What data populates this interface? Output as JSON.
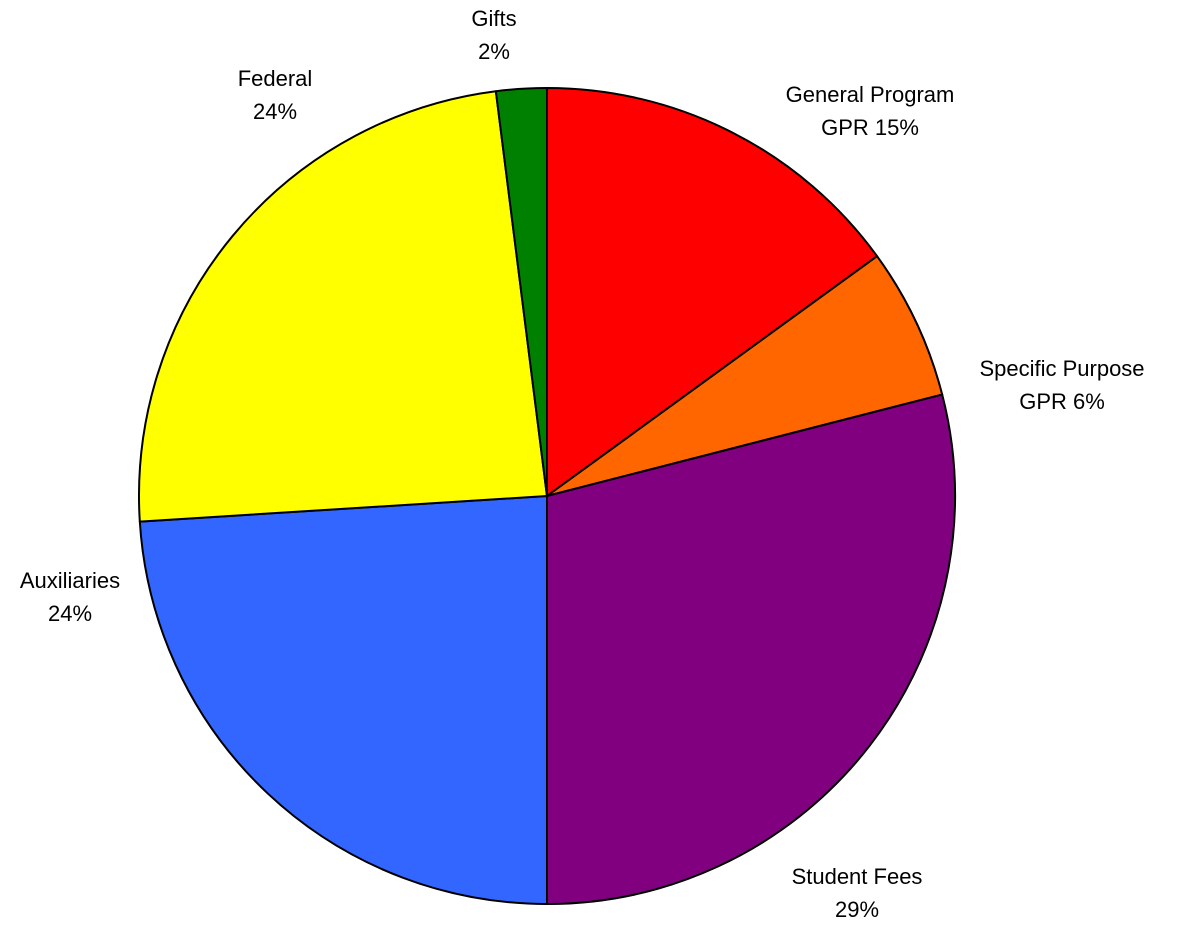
{
  "chart_data": {
    "type": "pie",
    "categories": [
      "General Program",
      "Specific Purpose",
      "Student Fees",
      "Auxiliaries",
      "Federal",
      "Gifts"
    ],
    "values": [
      15,
      6,
      29,
      24,
      24,
      2
    ],
    "value_labels": [
      "GPR  15%",
      "GPR  6%",
      "29%",
      "24%",
      "24%",
      "2%"
    ],
    "colors": [
      "#ff0000",
      "#ff6600",
      "#800080",
      "#3366ff",
      "#ffff00",
      "#008000"
    ]
  }
}
